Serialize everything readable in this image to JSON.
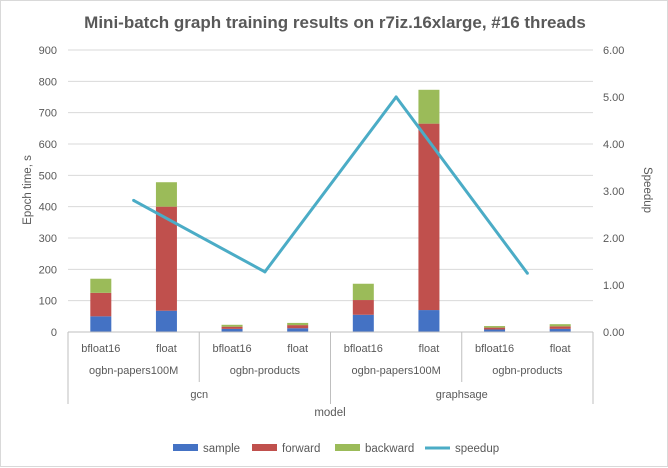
{
  "chart_data": {
    "type": "bar",
    "stacked": true,
    "title": "Mini-batch graph training results on r7iz.16xlarge, #16 threads",
    "ylabel": "Epoch time, s",
    "y2label": "Speedup",
    "xlabel": "model",
    "ylim": [
      0,
      900
    ],
    "y_ticks": [
      "0",
      "100",
      "200",
      "300",
      "400",
      "500",
      "600",
      "700",
      "800",
      "900"
    ],
    "y2lim": [
      0,
      6
    ],
    "y2_ticks": [
      "0.00",
      "1.00",
      "2.00",
      "3.00",
      "4.00",
      "5.00",
      "6.00"
    ],
    "grid": true,
    "legend_position": "bottom",
    "categories": [
      "bfloat16",
      "float",
      "bfloat16",
      "float",
      "bfloat16",
      "float",
      "bfloat16",
      "float"
    ],
    "dataset_groups": [
      {
        "label": "ogbn-papers100M",
        "span": 2
      },
      {
        "label": "ogbn-products",
        "span": 2
      },
      {
        "label": "ogbn-papers100M",
        "span": 2
      },
      {
        "label": "ogbn-products",
        "span": 2
      }
    ],
    "model_groups": [
      {
        "label": "gcn",
        "span": 4
      },
      {
        "label": "graphsage",
        "span": 4
      }
    ],
    "series": [
      {
        "name": "sample",
        "color": "#4472c4",
        "values": [
          50,
          68,
          10,
          12,
          55,
          70,
          8,
          10
        ]
      },
      {
        "name": "forward",
        "color": "#c0504d",
        "values": [
          75,
          332,
          7,
          10,
          47,
          595,
          6,
          8
        ]
      },
      {
        "name": "backward",
        "color": "#9bbb59",
        "values": [
          45,
          78,
          6,
          7,
          52,
          108,
          5,
          7
        ]
      }
    ],
    "line": {
      "name": "speedup",
      "color": "#4bacc6",
      "axis": "secondary",
      "points": [
        2.8,
        1.28,
        5.0,
        1.25
      ]
    }
  }
}
